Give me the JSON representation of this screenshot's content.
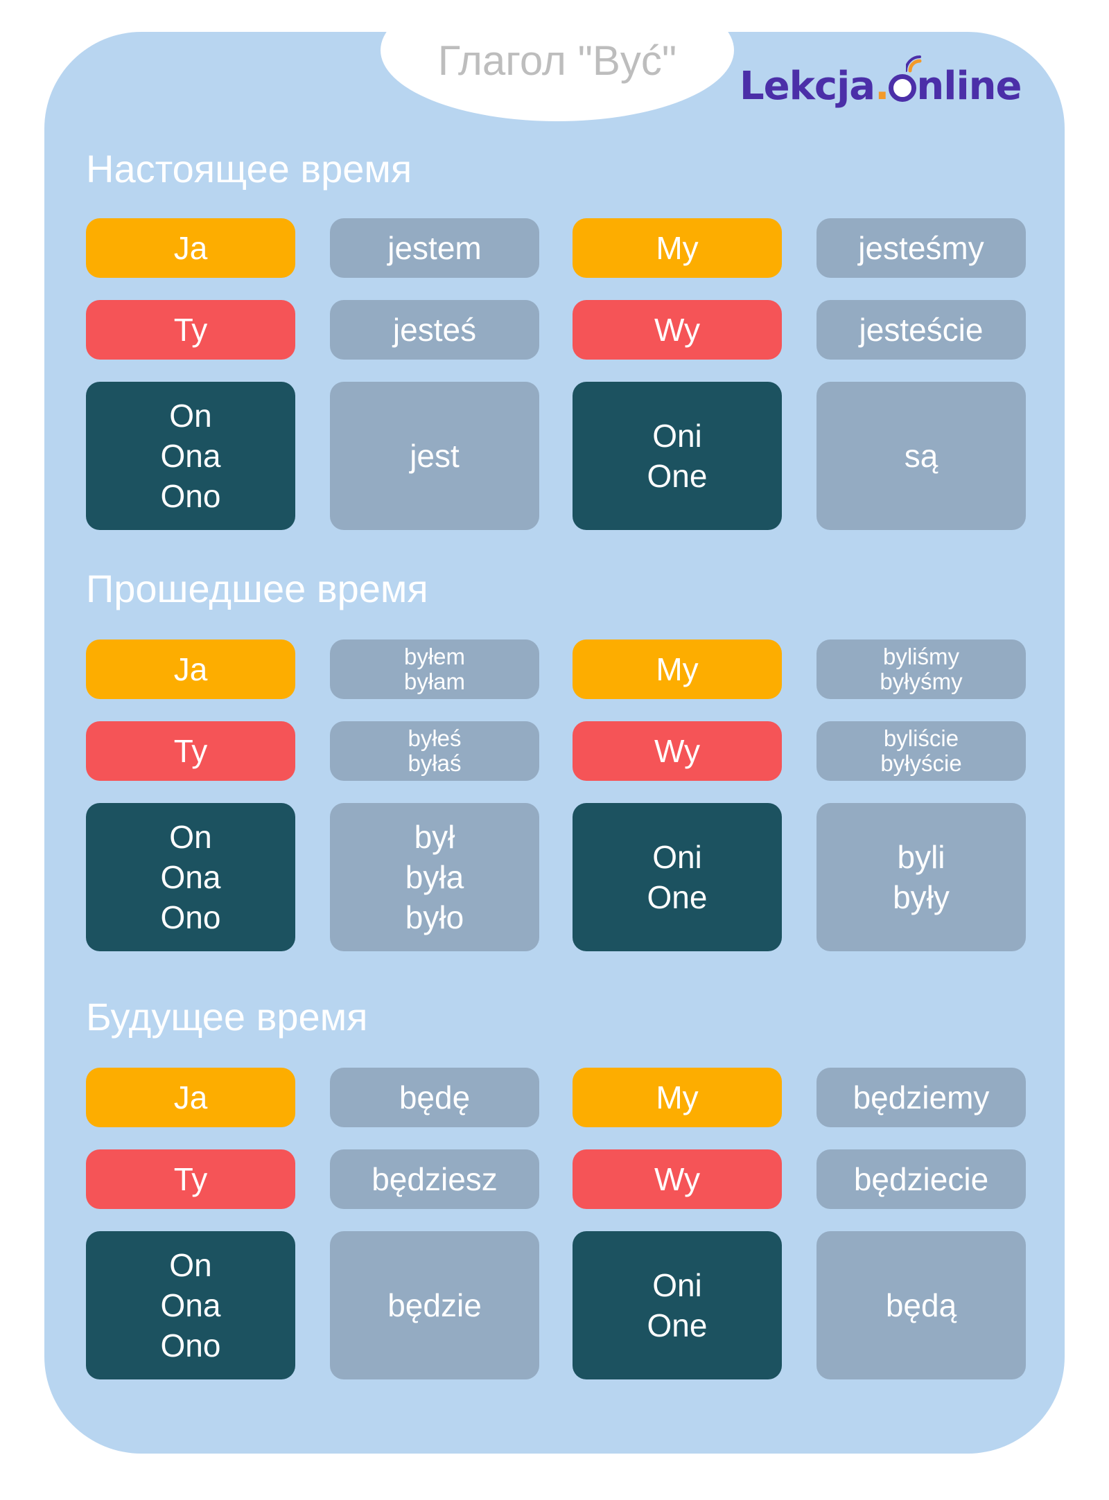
{
  "title": "Глагол \"Być\"",
  "logo": {
    "text_main": "Lekcja",
    "text_dot": ".",
    "text_end": "nline"
  },
  "colors": {
    "panel": "#b8d5f0",
    "singular_1": "#fdad00",
    "singular_2": "#f55457",
    "third_person": "#1c5260",
    "verb_box": "#94abc2",
    "logo": "#4b2fa8"
  },
  "sections": [
    {
      "title": "Настоящее время",
      "rows": [
        {
          "p1": "Ja",
          "v1": "jestem",
          "p2": "My",
          "v2": "jesteśmy"
        },
        {
          "p1": "Ty",
          "v1": "jesteś",
          "p2": "Wy",
          "v2": "jesteście"
        },
        {
          "p1": "On\nOna\nOno",
          "v1": "jest",
          "p2": "Oni\nOne",
          "v2": "są"
        }
      ]
    },
    {
      "title": "Прошедшее время",
      "rows": [
        {
          "p1": "Ja",
          "v1": "byłem\nbyłam",
          "p2": "My",
          "v2": "byliśmy\nbyłyśmy"
        },
        {
          "p1": "Ty",
          "v1": "byłeś\nbyłaś",
          "p2": "Wy",
          "v2": "byliście\nbyłyście"
        },
        {
          "p1": "On\nOna\nOno",
          "v1": "był\nbyła\nbyło",
          "p2": "Oni\nOne",
          "v2": "byli\nbyły"
        }
      ]
    },
    {
      "title": "Будущее время",
      "rows": [
        {
          "p1": "Ja",
          "v1": "będę",
          "p2": "My",
          "v2": "będziemy"
        },
        {
          "p1": "Ty",
          "v1": "będziesz",
          "p2": "Wy",
          "v2": "będziecie"
        },
        {
          "p1": "On\nOna\nOno",
          "v1": "będzie",
          "p2": "Oni\nOne",
          "v2": "będą"
        }
      ]
    }
  ]
}
